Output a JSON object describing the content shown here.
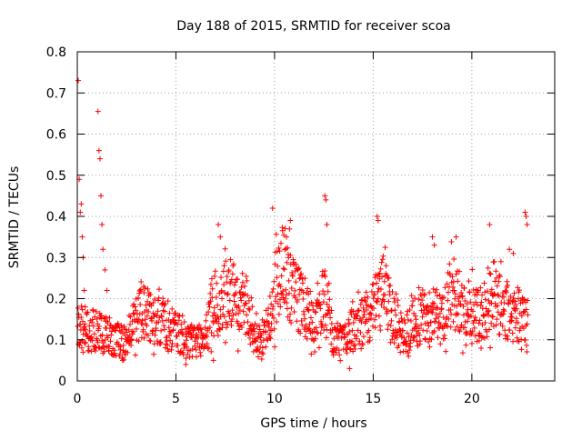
{
  "chart_data": {
    "type": "scatter",
    "title": "Day 188 of 2015, SRMTID for receiver scoa",
    "xlabel": "GPS time / hours",
    "ylabel": "SRMTID / TECUs",
    "xlim": [
      0,
      24.2
    ],
    "ylim": [
      0,
      0.8
    ],
    "xticks": [
      0,
      5,
      10,
      15,
      20
    ],
    "yticks": [
      0,
      0.1,
      0.2,
      0.3,
      0.4,
      0.5,
      0.6,
      0.7,
      0.8
    ],
    "grid": true,
    "series": [
      {
        "name": "SRMTID",
        "color": "#ff0000",
        "marker": "plus",
        "points": [
          [
            0.05,
            0.73
          ],
          [
            0.1,
            0.49
          ],
          [
            0.15,
            0.41
          ],
          [
            0.2,
            0.43
          ],
          [
            0.25,
            0.35
          ],
          [
            0.3,
            0.3
          ],
          [
            0.35,
            0.22
          ],
          [
            0.4,
            0.18
          ],
          [
            1.05,
            0.655
          ],
          [
            1.1,
            0.56
          ],
          [
            1.15,
            0.54
          ],
          [
            1.2,
            0.45
          ],
          [
            1.25,
            0.38
          ],
          [
            1.3,
            0.32
          ],
          [
            1.4,
            0.27
          ],
          [
            1.5,
            0.22
          ],
          [
            9.9,
            0.42
          ],
          [
            12.55,
            0.45
          ],
          [
            12.6,
            0.44
          ],
          [
            12.65,
            0.38
          ],
          [
            15.2,
            0.4
          ],
          [
            15.25,
            0.39
          ],
          [
            19.2,
            0.35
          ],
          [
            20.9,
            0.38
          ],
          [
            21.9,
            0.32
          ],
          [
            22.1,
            0.31
          ],
          [
            22.7,
            0.41
          ],
          [
            22.75,
            0.4
          ],
          [
            22.8,
            0.38
          ],
          [
            7.15,
            0.38
          ],
          [
            7.25,
            0.35
          ],
          [
            10.6,
            0.35
          ],
          [
            10.8,
            0.39
          ],
          [
            18.0,
            0.35
          ],
          [
            18.1,
            0.33
          ],
          [
            6.9,
            0.05
          ],
          [
            2.3,
            0.05
          ],
          [
            5.5,
            0.04
          ],
          [
            13.8,
            0.03
          ]
        ],
        "trend": [
          [
            0.3,
            0.13
          ],
          [
            0.6,
            0.12
          ],
          [
            1.0,
            0.12
          ],
          [
            1.5,
            0.11
          ],
          [
            2.0,
            0.1
          ],
          [
            2.5,
            0.09
          ],
          [
            3.0,
            0.15
          ],
          [
            3.5,
            0.17
          ],
          [
            4.0,
            0.15
          ],
          [
            4.5,
            0.13
          ],
          [
            5.0,
            0.12
          ],
          [
            5.5,
            0.1
          ],
          [
            6.0,
            0.1
          ],
          [
            6.5,
            0.11
          ],
          [
            7.0,
            0.2
          ],
          [
            7.5,
            0.22
          ],
          [
            8.0,
            0.2
          ],
          [
            8.5,
            0.19
          ],
          [
            9.0,
            0.12
          ],
          [
            9.5,
            0.1
          ],
          [
            10.0,
            0.22
          ],
          [
            10.5,
            0.27
          ],
          [
            11.0,
            0.21
          ],
          [
            11.5,
            0.18
          ],
          [
            12.0,
            0.15
          ],
          [
            12.5,
            0.2
          ],
          [
            13.0,
            0.1
          ],
          [
            13.5,
            0.1
          ],
          [
            14.0,
            0.14
          ],
          [
            14.5,
            0.15
          ],
          [
            15.0,
            0.17
          ],
          [
            15.5,
            0.22
          ],
          [
            16.0,
            0.16
          ],
          [
            16.5,
            0.1
          ],
          [
            17.0,
            0.14
          ],
          [
            17.5,
            0.15
          ],
          [
            18.0,
            0.17
          ],
          [
            18.5,
            0.15
          ],
          [
            19.0,
            0.22
          ],
          [
            19.5,
            0.18
          ],
          [
            20.0,
            0.17
          ],
          [
            20.5,
            0.16
          ],
          [
            21.0,
            0.22
          ],
          [
            21.5,
            0.18
          ],
          [
            22.0,
            0.17
          ],
          [
            22.5,
            0.16
          ],
          [
            22.8,
            0.14
          ]
        ]
      }
    ]
  }
}
